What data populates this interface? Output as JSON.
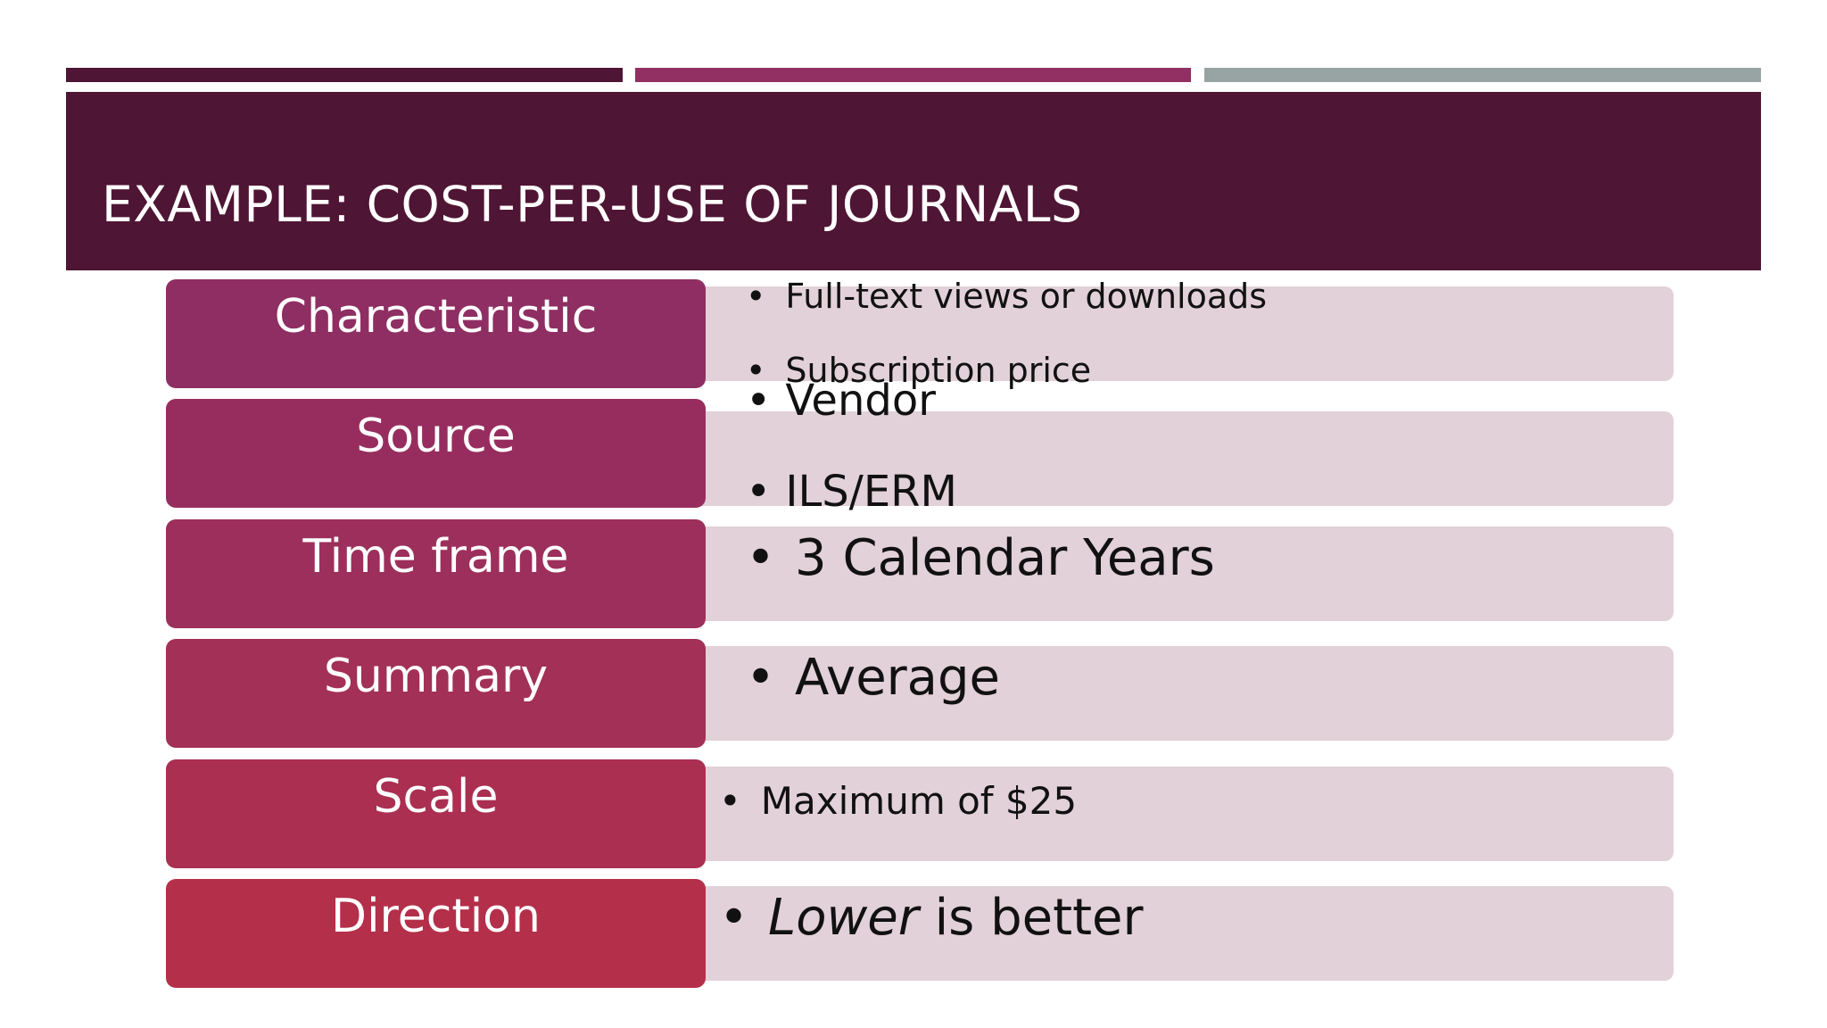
{
  "slide": {
    "title": "EXAMPLE: COST-PER-USE OF JOURNALS",
    "colors": {
      "stripe_left": "#4f1534",
      "stripe_mid": "#933063",
      "stripe_right": "#98a4a4",
      "title_bar": "#4f1534",
      "detail_box": "#e2d1d8"
    }
  },
  "rows": [
    {
      "label": "Characteristic",
      "color": "#8f2e62",
      "items": [
        "Full-text views or downloads",
        "Subscription price"
      ]
    },
    {
      "label": "Source",
      "color": "#972d5e",
      "items": [
        "Vendor",
        "ILS/ERM"
      ]
    },
    {
      "label": "Time frame",
      "color": "#9c2f5b",
      "items": [
        "3 Calendar Years"
      ]
    },
    {
      "label": "Summary",
      "color": "#a33056",
      "items": [
        "Average"
      ]
    },
    {
      "label": "Scale",
      "color": "#aa2f51",
      "items": [
        "Maximum of $25"
      ]
    },
    {
      "label": "Direction",
      "color": "#b42f4a",
      "items": [
        {
          "em": "Lower",
          "rest": " is better"
        }
      ]
    }
  ]
}
